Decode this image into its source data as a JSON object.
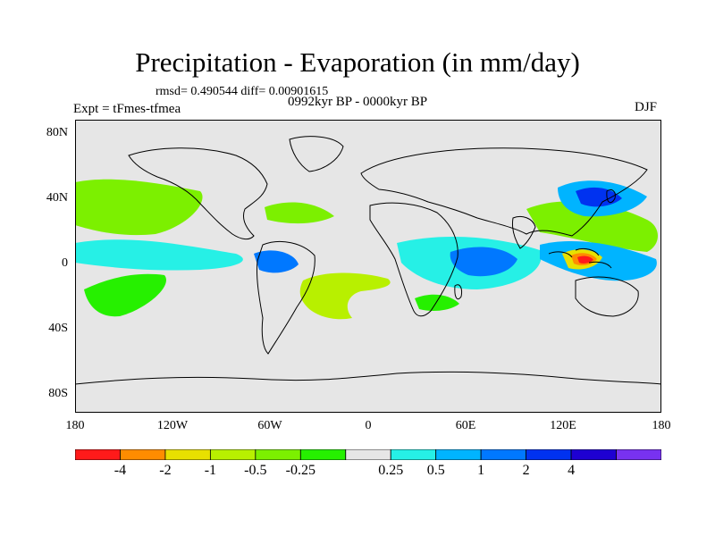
{
  "header": {
    "title": "Precipitation - Evaporation (in mm/day)",
    "stats": "rmsd= 0.490544 diff= 0.00901615",
    "experiment": "Expt = tFmes-tfmea",
    "period": "0992kyr BP - 0000kyr BP",
    "season": "DJF"
  },
  "axes": {
    "lat_ticks": [
      "80N",
      "40N",
      "0",
      "40S",
      "80S"
    ],
    "lat_values": [
      80,
      40,
      0,
      -40,
      -80
    ],
    "lon_ticks": [
      "180",
      "120W",
      "60W",
      "0",
      "60E",
      "120E",
      "180"
    ],
    "lon_values": [
      -180,
      -120,
      -60,
      0,
      60,
      120,
      180
    ]
  },
  "colorbar": {
    "labels": [
      "-4",
      "-2",
      "-1",
      "-0.5",
      "-0.25",
      "0.25",
      "0.5",
      "1",
      "2",
      "4"
    ],
    "colors": [
      "#ff1a1a",
      "#ff8c00",
      "#e8e000",
      "#b8f000",
      "#7cf000",
      "#26f000",
      "#e6e6e6",
      "#26f0e6",
      "#00b4ff",
      "#0078ff",
      "#0032f0",
      "#1e00d2",
      "#7832f0"
    ]
  },
  "map": {
    "background_color": "#e6e6e6",
    "lon_range": [
      -180,
      180
    ],
    "lat_range": [
      -90,
      90
    ]
  }
}
